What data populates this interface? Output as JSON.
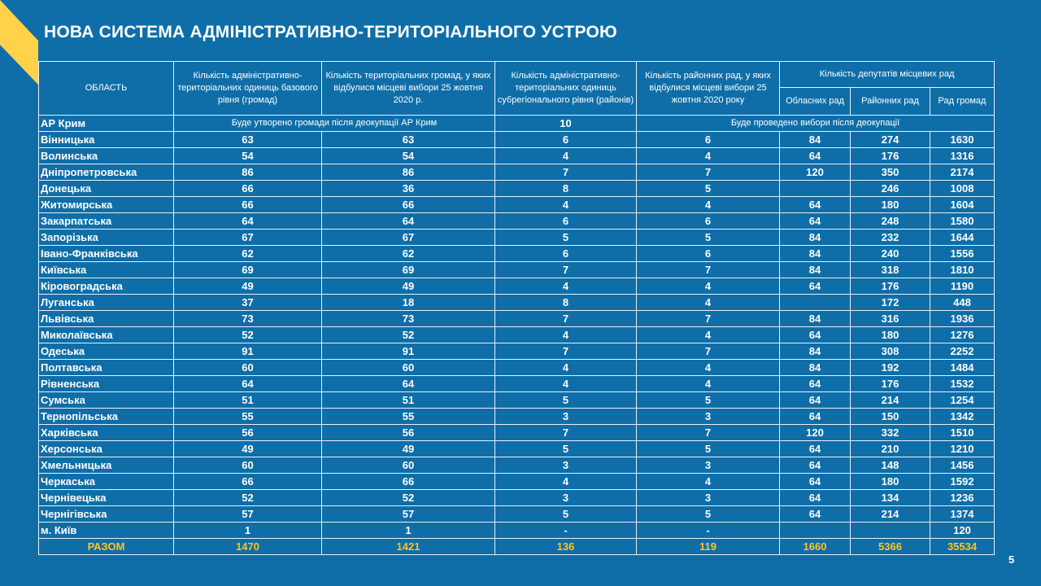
{
  "title": "НОВА СИСТЕМА АДМІНІСТРАТИВНО-ТЕРИТОРІАЛЬНОГО УСТРОЮ",
  "page_number": 5,
  "table": {
    "header": {
      "region": "ОБЛАСТЬ",
      "columns": [
        "Кількість адміністративно-територіальних одиниць базового рівня (громад)",
        "Кількість територіальних громад, у яких відбулися місцеві вибори 25 жовтня 2020 р.",
        "Кількість адміністративно-територіальних одиниць субрегіонального рівня (районів)",
        "Кількість районних рад, у яких відбулися місцеві вибори 25 жовтня 2020 року"
      ],
      "deputies": "Кількість депутатів місцевих рад",
      "deputies_sub": [
        "Обласних рад",
        "Районних рад",
        "Рад громад"
      ]
    },
    "crimea": {
      "name": "АР Крим",
      "communities_note": "Буде утворено громади після деокупації АР Крим",
      "districts": 10,
      "elections_note": "Буде проведено вибори після деокупації"
    },
    "rows": [
      [
        "Вінницька",
        63,
        63,
        6,
        6,
        84,
        274,
        1630
      ],
      [
        "Волинська",
        54,
        54,
        4,
        4,
        64,
        176,
        1316
      ],
      [
        "Дніпропетровська",
        86,
        86,
        7,
        7,
        120,
        350,
        2174
      ],
      [
        "Донецька",
        66,
        36,
        8,
        5,
        null,
        246,
        1008
      ],
      [
        "Житомирська",
        66,
        66,
        4,
        4,
        64,
        180,
        1604
      ],
      [
        "Закарпатська",
        64,
        64,
        6,
        6,
        64,
        248,
        1580
      ],
      [
        "Запорізька",
        67,
        67,
        5,
        5,
        84,
        232,
        1644
      ],
      [
        "Івано-Франківська",
        62,
        62,
        6,
        6,
        84,
        240,
        1556
      ],
      [
        "Київська",
        69,
        69,
        7,
        7,
        84,
        318,
        1810
      ],
      [
        "Кіровоградська",
        49,
        49,
        4,
        4,
        64,
        176,
        1190
      ],
      [
        "Луганська",
        37,
        18,
        8,
        4,
        null,
        172,
        448
      ],
      [
        "Львівська",
        73,
        73,
        7,
        7,
        84,
        316,
        1936
      ],
      [
        "Миколаївська",
        52,
        52,
        4,
        4,
        64,
        180,
        1276
      ],
      [
        "Одеська",
        91,
        91,
        7,
        7,
        84,
        308,
        2252
      ],
      [
        "Полтавська",
        60,
        60,
        4,
        4,
        84,
        192,
        1484
      ],
      [
        "Рівненська",
        64,
        64,
        4,
        4,
        64,
        176,
        1532
      ],
      [
        "Сумська",
        51,
        51,
        5,
        5,
        64,
        214,
        1254
      ],
      [
        "Тернопільська",
        55,
        55,
        3,
        3,
        64,
        150,
        1342
      ],
      [
        "Харківська",
        56,
        56,
        7,
        7,
        120,
        332,
        1510
      ],
      [
        "Херсонська",
        49,
        49,
        5,
        5,
        64,
        210,
        1210
      ],
      [
        "Хмельницька",
        60,
        60,
        3,
        3,
        64,
        148,
        1456
      ],
      [
        "Черкаська",
        66,
        66,
        4,
        4,
        64,
        180,
        1592
      ],
      [
        "Чернівецька",
        52,
        52,
        3,
        3,
        64,
        134,
        1236
      ],
      [
        "Чернігівська",
        57,
        57,
        5,
        5,
        64,
        214,
        1374
      ],
      [
        "м. Київ",
        1,
        1,
        "-",
        "-",
        null,
        null,
        120
      ]
    ],
    "total": [
      "РАЗОМ",
      1470,
      1421,
      136,
      119,
      1660,
      5366,
      35534
    ]
  }
}
